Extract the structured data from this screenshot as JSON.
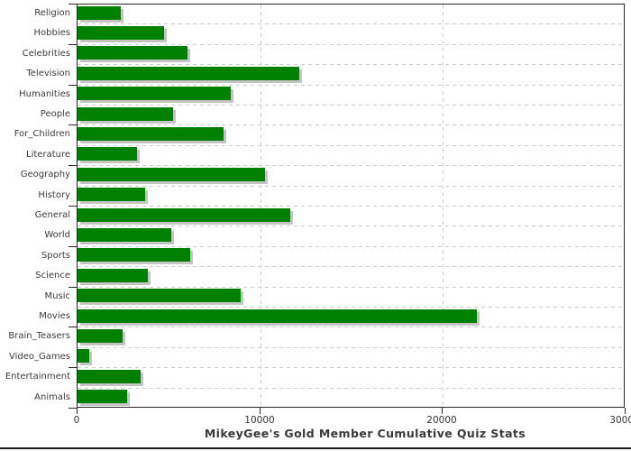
{
  "chart_data": {
    "type": "bar",
    "orientation": "horizontal",
    "title": "MikeyGee's Gold Member Cumulative Quiz Stats",
    "categories": [
      "Religion",
      "Hobbies",
      "Celebrities",
      "Television",
      "Humanities",
      "People",
      "For_Children",
      "Literature",
      "Geography",
      "History",
      "General",
      "World",
      "Sports",
      "Science",
      "Music",
      "Movies",
      "Brain_Teasers",
      "Video_Games",
      "Entertainment",
      "Animals"
    ],
    "values": [
      2400,
      4800,
      6080,
      12170,
      8440,
      5290,
      8030,
      3290,
      10330,
      3770,
      11670,
      5200,
      6220,
      3910,
      8980,
      21900,
      2510,
      710,
      3480,
      2750
    ],
    "xlabel": "",
    "ylabel": "",
    "xlim": [
      0,
      30000
    ],
    "x_ticks": [
      0,
      10000,
      20000,
      30000
    ],
    "grid": "dashed",
    "legend": "none",
    "colors": {
      "bar": "#008000",
      "bar_shadow": "#c4c4c4",
      "grid": "#cdcdcd",
      "axis": "#2a2a2a",
      "label_text": "#3b3b3b",
      "title_text": "#3a3a3a",
      "background": "#ffffff"
    }
  }
}
